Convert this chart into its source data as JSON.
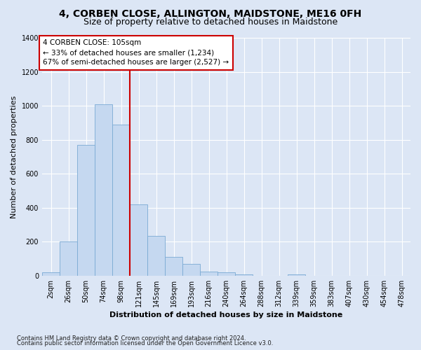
{
  "title": "4, CORBEN CLOSE, ALLINGTON, MAIDSTONE, ME16 0FH",
  "subtitle": "Size of property relative to detached houses in Maidstone",
  "xlabel": "Distribution of detached houses by size in Maidstone",
  "ylabel": "Number of detached properties",
  "bar_labels": [
    "2sqm",
    "26sqm",
    "50sqm",
    "74sqm",
    "98sqm",
    "121sqm",
    "145sqm",
    "169sqm",
    "193sqm",
    "216sqm",
    "240sqm",
    "264sqm",
    "288sqm",
    "312sqm",
    "339sqm",
    "359sqm",
    "383sqm",
    "407sqm",
    "430sqm",
    "454sqm",
    "478sqm"
  ],
  "bar_values": [
    20,
    200,
    770,
    1010,
    890,
    420,
    235,
    110,
    70,
    25,
    20,
    10,
    0,
    0,
    10,
    0,
    0,
    0,
    0,
    0,
    0
  ],
  "bar_color": "#c5d8f0",
  "bar_edge_color": "#7aaad4",
  "vline_color": "#cc0000",
  "annotation_text": "4 CORBEN CLOSE: 105sqm\n← 33% of detached houses are smaller (1,234)\n67% of semi-detached houses are larger (2,527) →",
  "annotation_box_edgecolor": "#cc0000",
  "ylim": [
    0,
    1400
  ],
  "yticks": [
    0,
    200,
    400,
    600,
    800,
    1000,
    1200,
    1400
  ],
  "figure_bg_color": "#dce6f5",
  "plot_bg_color": "#dce6f5",
  "grid_color": "#ffffff",
  "footer_line1": "Contains HM Land Registry data © Crown copyright and database right 2024.",
  "footer_line2": "Contains public sector information licensed under the Open Government Licence v3.0.",
  "title_fontsize": 10,
  "subtitle_fontsize": 9,
  "axis_label_fontsize": 8,
  "tick_fontsize": 7,
  "annot_fontsize": 7.5,
  "footer_fontsize": 6
}
